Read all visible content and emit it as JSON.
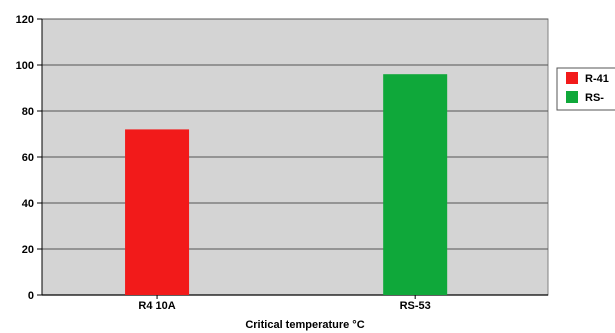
{
  "chart_data": {
    "type": "bar",
    "title": "",
    "xlabel": "Critical temperature °C",
    "ylabel": "",
    "categories": [
      "R4 10A",
      "RS-53"
    ],
    "values": [
      72,
      96
    ],
    "colors": [
      "#f21a1a",
      "#0fa83a"
    ],
    "ylim": [
      0,
      120
    ],
    "yticks": [
      0,
      20,
      40,
      60,
      80,
      100,
      120
    ],
    "grid": true,
    "plot_background": "#d4d4d4",
    "legend": {
      "placement": "right",
      "entries": [
        {
          "label": "R-41",
          "color": "#f21a1a"
        },
        {
          "label": "RS-",
          "color": "#0fa83a"
        }
      ]
    }
  }
}
